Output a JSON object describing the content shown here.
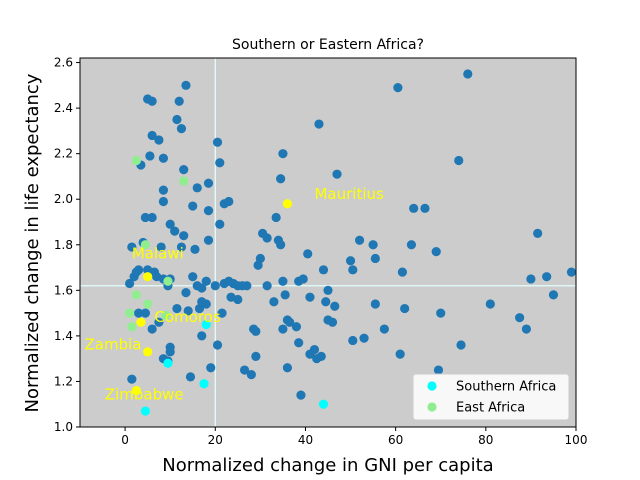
{
  "chart_data": {
    "type": "scatter",
    "title": "Southern or Eastern Africa?",
    "xlabel": "Normalized change in GNI per capita",
    "ylabel": "Normalized change in life expectancy",
    "xlim": [
      -10,
      100
    ],
    "ylim": [
      1.0,
      2.62
    ],
    "xticks": [
      "0",
      "20",
      "40",
      "60",
      "80",
      "100"
    ],
    "yticks": [
      "1.0",
      "1.2",
      "1.4",
      "1.6",
      "1.8",
      "2.0",
      "2.2",
      "2.4",
      "2.6"
    ],
    "grid": false,
    "reference_lines": {
      "x": 20.0,
      "y": 1.62,
      "color": "#e0ffff"
    },
    "legend": {
      "placement": "lower-right"
    },
    "colors": {
      "background": "#cccccc",
      "other": "#1f77b4",
      "southern_africa": "#00ffff",
      "east_africa": "#90ee90",
      "annotation": "#ffff00",
      "highlight": "#ffff00"
    },
    "series": [
      {
        "name": "",
        "color": "#1f77b4",
        "points": [
          [
            1.0,
            1.63
          ],
          [
            1.5,
            1.79
          ],
          [
            2.0,
            1.66
          ],
          [
            2.5,
            1.68
          ],
          [
            3.0,
            1.69
          ],
          [
            4.0,
            1.81
          ],
          [
            4.5,
            1.92
          ],
          [
            5.0,
            1.69
          ],
          [
            6.0,
            1.92
          ],
          [
            6.5,
            1.68
          ],
          [
            7.0,
            1.66
          ],
          [
            8.0,
            1.79
          ],
          [
            8.5,
            1.65
          ],
          [
            9.5,
            1.62
          ],
          [
            10.0,
            1.65
          ],
          [
            10.0,
            1.89
          ],
          [
            11.0,
            1.86
          ],
          [
            12.5,
            1.79
          ],
          [
            13.0,
            1.84
          ],
          [
            13.5,
            1.59
          ],
          [
            15.5,
            1.78
          ],
          [
            16.0,
            1.62
          ],
          [
            17.0,
            1.61
          ],
          [
            18.0,
            1.64
          ],
          [
            18.5,
            1.82
          ],
          [
            20.0,
            1.62
          ],
          [
            21.0,
            1.89
          ],
          [
            22.0,
            1.63
          ],
          [
            23.0,
            1.64
          ],
          [
            24.0,
            1.63
          ],
          [
            25.0,
            1.62
          ],
          [
            26.0,
            1.62
          ],
          [
            27.0,
            1.62
          ],
          [
            3.5,
            2.15
          ],
          [
            5.0,
            2.44
          ],
          [
            6.0,
            2.28
          ],
          [
            6.0,
            2.43
          ],
          [
            7.5,
            2.26
          ],
          [
            8.5,
            2.18
          ],
          [
            8.5,
            1.99
          ],
          [
            8.5,
            2.04
          ],
          [
            5.5,
            2.19
          ],
          [
            11.5,
            2.35
          ],
          [
            12.0,
            2.43
          ],
          [
            12.5,
            2.31
          ],
          [
            13.0,
            2.13
          ],
          [
            13.5,
            2.5
          ],
          [
            15.0,
            1.97
          ],
          [
            16.0,
            2.05
          ],
          [
            18.5,
            2.07
          ],
          [
            18.5,
            1.95
          ],
          [
            20.5,
            2.25
          ],
          [
            21.0,
            2.16
          ],
          [
            22.0,
            1.98
          ],
          [
            23.0,
            1.99
          ],
          [
            1.5,
            1.21
          ],
          [
            3.0,
            1.5
          ],
          [
            4.5,
            1.5
          ],
          [
            6.0,
            1.43
          ],
          [
            7.5,
            1.46
          ],
          [
            8.5,
            1.3
          ],
          [
            9.5,
            1.29
          ],
          [
            10.0,
            1.35
          ],
          [
            10.0,
            1.33
          ],
          [
            11.5,
            1.52
          ],
          [
            14.0,
            1.51
          ],
          [
            14.5,
            1.22
          ],
          [
            15.0,
            1.66
          ],
          [
            16.5,
            1.52
          ],
          [
            17.0,
            1.55
          ],
          [
            17.0,
            1.4
          ],
          [
            18.0,
            1.54
          ],
          [
            19.0,
            1.26
          ],
          [
            20.5,
            1.36
          ],
          [
            21.5,
            1.5
          ],
          [
            23.5,
            1.57
          ],
          [
            25.0,
            1.56
          ],
          [
            26.5,
            1.25
          ],
          [
            28.0,
            1.23
          ],
          [
            28.5,
            1.43
          ],
          [
            29.0,
            1.31
          ],
          [
            29.0,
            1.42
          ],
          [
            29.5,
            1.71
          ],
          [
            30.0,
            1.74
          ],
          [
            30.5,
            1.85
          ],
          [
            31.5,
            1.83
          ],
          [
            31.5,
            1.62
          ],
          [
            33.0,
            1.55
          ],
          [
            33.5,
            1.92
          ],
          [
            34.0,
            1.82
          ],
          [
            34.5,
            1.8
          ],
          [
            34.5,
            2.09
          ],
          [
            35.0,
            2.2
          ],
          [
            35.0,
            1.64
          ],
          [
            35.5,
            1.58
          ],
          [
            36.0,
            1.47
          ],
          [
            35.0,
            1.43
          ],
          [
            36.5,
            1.46
          ],
          [
            36.0,
            1.26
          ],
          [
            38.0,
            1.44
          ],
          [
            38.5,
            1.37
          ],
          [
            38.5,
            1.64
          ],
          [
            39.5,
            1.65
          ],
          [
            39.0,
            1.14
          ],
          [
            40.5,
            1.76
          ],
          [
            41.0,
            1.57
          ],
          [
            41.0,
            1.32
          ],
          [
            42.0,
            1.34
          ],
          [
            42.5,
            1.3
          ],
          [
            43.0,
            2.33
          ],
          [
            43.5,
            1.31
          ],
          [
            44.0,
            1.69
          ],
          [
            44.5,
            1.55
          ],
          [
            45.0,
            1.6
          ],
          [
            45.0,
            1.47
          ],
          [
            46.0,
            1.46
          ],
          [
            46.5,
            1.53
          ],
          [
            47.0,
            2.11
          ],
          [
            50.0,
            1.73
          ],
          [
            50.5,
            1.69
          ],
          [
            50.5,
            1.38
          ],
          [
            52.0,
            1.82
          ],
          [
            53.0,
            1.39
          ],
          [
            55.0,
            1.8
          ],
          [
            55.5,
            1.74
          ],
          [
            55.5,
            1.54
          ],
          [
            57.5,
            1.43
          ],
          [
            60.5,
            2.49
          ],
          [
            61.0,
            1.32
          ],
          [
            61.5,
            1.68
          ],
          [
            62.0,
            1.52
          ],
          [
            63.5,
            1.8
          ],
          [
            64.0,
            1.96
          ],
          [
            66.5,
            1.96
          ],
          [
            69.0,
            1.77
          ],
          [
            69.5,
            1.25
          ],
          [
            70.0,
            1.5
          ],
          [
            74.0,
            2.17
          ],
          [
            74.5,
            1.36
          ],
          [
            76.0,
            2.55
          ],
          [
            81.0,
            1.54
          ],
          [
            87.5,
            1.48
          ],
          [
            89.0,
            1.43
          ],
          [
            90.0,
            1.65
          ],
          [
            91.5,
            1.85
          ],
          [
            93.5,
            1.66
          ],
          [
            95.0,
            1.58
          ],
          [
            99.0,
            1.68
          ]
        ]
      },
      {
        "name": "Southern Africa",
        "color": "#00ffff",
        "points": [
          [
            4.5,
            1.07
          ],
          [
            9.5,
            1.28
          ],
          [
            17.5,
            1.19
          ],
          [
            18.0,
            1.45
          ],
          [
            44.0,
            1.1
          ]
        ]
      },
      {
        "name": "East Africa",
        "color": "#90ee90",
        "points": [
          [
            1.0,
            1.5
          ],
          [
            1.5,
            1.44
          ],
          [
            2.5,
            2.17
          ],
          [
            2.5,
            1.58
          ],
          [
            4.5,
            1.8
          ],
          [
            5.0,
            1.54
          ],
          [
            9.0,
            1.49
          ],
          [
            9.5,
            1.64
          ],
          [
            13.0,
            2.08
          ]
        ]
      },
      {
        "name": "",
        "color": "#ffff00",
        "points": [
          [
            2.5,
            1.16
          ],
          [
            3.5,
            1.46
          ],
          [
            5.0,
            1.66
          ],
          [
            5.0,
            1.33
          ],
          [
            36.0,
            1.98
          ]
        ]
      }
    ],
    "annotations": [
      {
        "text": "Mauritius",
        "x": 42.0,
        "y": 2.0
      },
      {
        "text": "Malawi",
        "x": 1.5,
        "y": 1.74
      },
      {
        "text": "Comoros",
        "x": 6.5,
        "y": 1.46
      },
      {
        "text": "Zambia",
        "x": -9.0,
        "y": 1.34
      },
      {
        "text": "Zimbabwe",
        "x": -4.5,
        "y": 1.12
      }
    ]
  }
}
